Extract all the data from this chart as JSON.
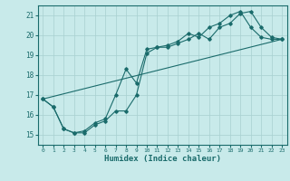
{
  "title": "",
  "xlabel": "Humidex (Indice chaleur)",
  "ylabel": "",
  "bg_color": "#c8eaea",
  "grid_color": "#a8d0d0",
  "line_color": "#1a6b6b",
  "xlim": [
    -0.5,
    23.5
  ],
  "ylim": [
    14.5,
    21.5
  ],
  "xticks": [
    0,
    1,
    2,
    3,
    4,
    5,
    6,
    7,
    8,
    9,
    10,
    11,
    12,
    13,
    14,
    15,
    16,
    17,
    18,
    19,
    20,
    21,
    22,
    23
  ],
  "yticks": [
    15,
    16,
    17,
    18,
    19,
    20,
    21
  ],
  "line1_x": [
    0,
    1,
    2,
    3,
    4,
    5,
    6,
    7,
    8,
    9,
    10,
    11,
    12,
    13,
    14,
    15,
    16,
    17,
    18,
    19,
    20,
    21,
    22,
    23
  ],
  "line1_y": [
    16.8,
    16.4,
    15.3,
    15.1,
    15.1,
    15.5,
    15.7,
    16.2,
    16.2,
    17.0,
    19.1,
    19.4,
    19.4,
    19.6,
    19.8,
    20.1,
    19.8,
    20.4,
    20.6,
    21.1,
    21.2,
    20.4,
    19.9,
    19.8
  ],
  "line2_x": [
    0,
    1,
    2,
    3,
    4,
    5,
    6,
    7,
    8,
    9,
    10,
    11,
    12,
    13,
    14,
    15,
    16,
    17,
    18,
    19,
    20,
    21,
    22,
    23
  ],
  "line2_y": [
    16.8,
    16.4,
    15.3,
    15.1,
    15.2,
    15.6,
    15.8,
    17.0,
    18.3,
    17.6,
    19.3,
    19.4,
    19.5,
    19.7,
    20.1,
    19.9,
    20.4,
    20.6,
    21.0,
    21.2,
    20.4,
    19.9,
    19.8,
    19.8
  ],
  "line3_x": [
    0,
    23
  ],
  "line3_y": [
    16.8,
    19.8
  ],
  "marker": "D",
  "markersize": 1.8,
  "linewidth": 0.8
}
